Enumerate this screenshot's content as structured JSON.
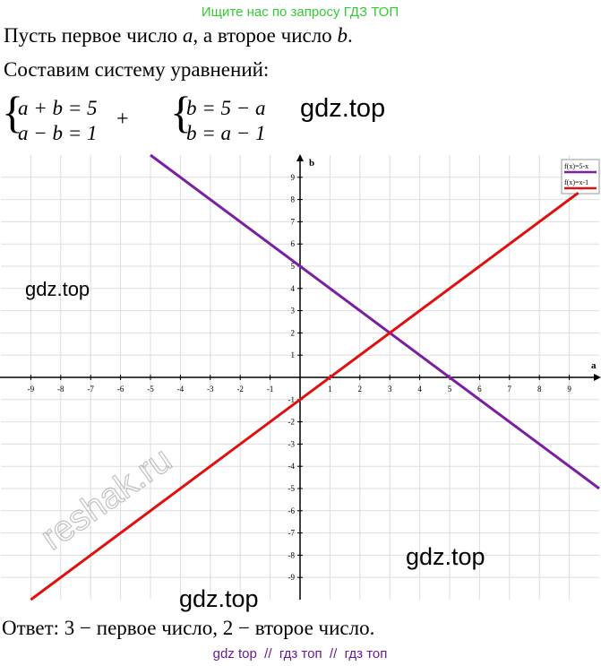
{
  "header": {
    "watermark": "Ищите нас по запросу ГДЗ ТОП"
  },
  "intro": {
    "parts": [
      "Пусть первое число ",
      "a",
      ", а второе число ",
      "b",
      "."
    ]
  },
  "system_title": "Составим систему уравнений:",
  "system1": {
    "eq1": "a + b = 5",
    "eq2": "a − b = 1",
    "sign": "+"
  },
  "system2": {
    "eq1": "b = 5 − a",
    "eq2": "b = a − 1"
  },
  "graph": {
    "x_label": "a",
    "y_label": "b",
    "xlim": [
      -10,
      10
    ],
    "ylim": [
      -10,
      10
    ],
    "xticks": [
      -9,
      -8,
      -7,
      -6,
      -5,
      -4,
      -3,
      -2,
      -1,
      1,
      2,
      3,
      4,
      5,
      6,
      7,
      8,
      9
    ],
    "yticks": [
      -9,
      -8,
      -7,
      -6,
      -5,
      -4,
      -3,
      -2,
      -1,
      1,
      2,
      3,
      4,
      5,
      6,
      7,
      8,
      9
    ],
    "grid": true,
    "lines": [
      {
        "name": "f(x)=5-x",
        "color": "#7b1fa2",
        "x": [
          -5,
          10
        ],
        "y": [
          10,
          -5
        ]
      },
      {
        "name": "f(x)=x-1",
        "color": "#e01010",
        "x": [
          -9,
          9.3
        ],
        "y": [
          -10,
          8.3
        ]
      }
    ]
  },
  "answer": "Ответ: 3 − первое число, 2 − второе число.",
  "watermarks": [
    "gdz.top",
    "gdz.top",
    "gdz.top",
    "gdz.top",
    "reshak.ru"
  ],
  "footer": "gdz top  //  гдз топ  //  гдз топ"
}
